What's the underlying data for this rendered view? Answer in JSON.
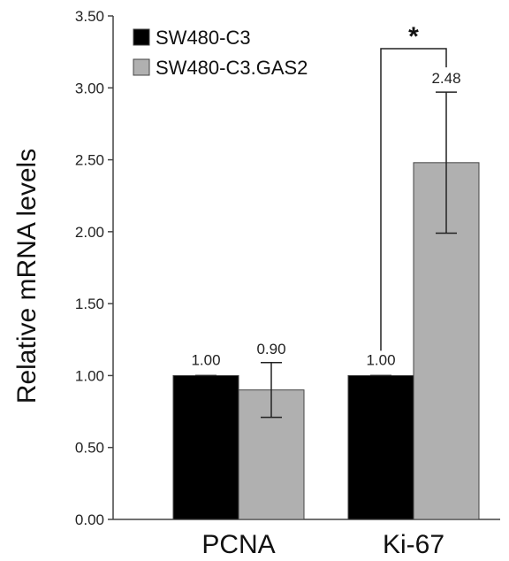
{
  "chart_data": {
    "type": "bar",
    "categories": [
      "PCNA",
      "Ki-67"
    ],
    "series": [
      {
        "name": "SW480-C3",
        "color": "#000000",
        "values": [
          1.0,
          1.0
        ],
        "errors": [
          0.0,
          0.0
        ],
        "labels": [
          "1.00",
          "1.00"
        ]
      },
      {
        "name": "SW480-C3.GAS2",
        "color": "#b0b0b0",
        "values": [
          0.9,
          2.48
        ],
        "errors": [
          0.19,
          0.49
        ],
        "labels": [
          "0.90",
          "2.48"
        ]
      }
    ],
    "ylabel": "Relative mRNA levels",
    "xlabel": "",
    "ylim": [
      0,
      3.5
    ],
    "yticks": [
      "0.00",
      "0.50",
      "1.00",
      "1.50",
      "2.00",
      "2.50",
      "3.00",
      "3.50"
    ],
    "legend": "top-left",
    "grid": false,
    "significance": {
      "category": "Ki-67",
      "label": "*"
    }
  }
}
